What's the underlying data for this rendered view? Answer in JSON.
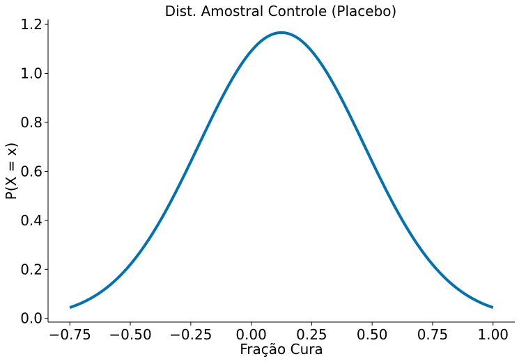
{
  "chart_data": {
    "type": "line",
    "title": "Dist. Amostral Controle (Placebo)",
    "xlabel": "Fração Cura",
    "ylabel": "P(X = x)",
    "xlim": [
      -0.84,
      1.09
    ],
    "ylim": [
      -0.015,
      1.22
    ],
    "xticks": [
      -0.75,
      -0.5,
      -0.25,
      0.0,
      0.25,
      0.5,
      0.75,
      1.0
    ],
    "xtick_labels": [
      "−0.75",
      "−0.50",
      "−0.25",
      "0.00",
      "0.25",
      "0.50",
      "0.75",
      "1.00"
    ],
    "yticks": [
      0.0,
      0.2,
      0.4,
      0.6,
      0.8,
      1.0,
      1.2
    ],
    "ytick_labels": [
      "0.0",
      "0.2",
      "0.4",
      "0.6",
      "0.8",
      "1.0",
      "1.2"
    ],
    "grid": false,
    "series": [
      {
        "distribution": "normal",
        "mean": 0.125,
        "sd": 0.342,
        "x_range": [
          -0.75,
          1.0
        ],
        "color": "#0072b2"
      }
    ]
  }
}
